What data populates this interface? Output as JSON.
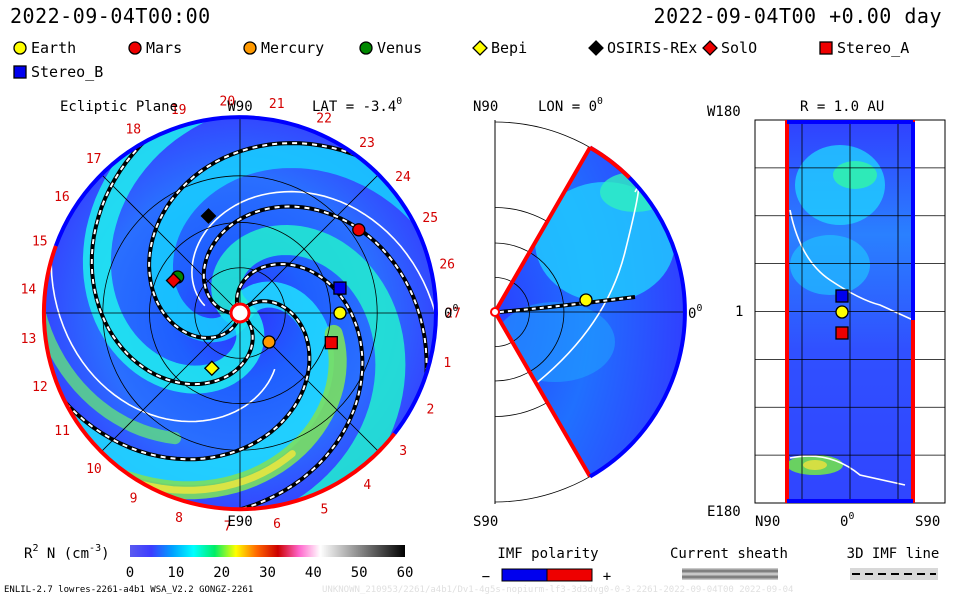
{
  "header": {
    "left_timestamp": "2022-09-04T00:00",
    "right_timestamp": "2022-09-04T00 +0.00 day"
  },
  "legend": {
    "items": [
      {
        "label": "Earth",
        "marker": "circle",
        "color": "#ffff00"
      },
      {
        "label": "Mars",
        "marker": "circle",
        "color": "#ee0000"
      },
      {
        "label": "Mercury",
        "marker": "circle",
        "color": "#ff9900"
      },
      {
        "label": "Venus",
        "marker": "circle",
        "color": "#008800"
      },
      {
        "label": "Bepi",
        "marker": "diamond",
        "color": "#ffff00"
      },
      {
        "label": "OSIRIS-REx",
        "marker": "diamond",
        "color": "#000000"
      },
      {
        "label": "SolO",
        "marker": "diamond",
        "color": "#ee0000"
      },
      {
        "label": "Stereo_A",
        "marker": "square",
        "color": "#ee0000"
      },
      {
        "label": "Stereo_B",
        "marker": "square",
        "color": "#0000ee"
      }
    ]
  },
  "chart_data": [
    {
      "type": "heatmap",
      "title": "Ecliptic Plane",
      "top_label": "W90",
      "bottom_label": "E90",
      "right_label": "0",
      "right_label_sup": "0",
      "lat_label": "LAT = -3.4",
      "lat_sup": "0",
      "sector_numbers": [
        "1",
        "2",
        "3",
        "4",
        "5",
        "6",
        "7",
        "8",
        "9",
        "10",
        "11",
        "12",
        "13",
        "14",
        "15",
        "16",
        "17",
        "18",
        "19",
        "20",
        "21",
        "22",
        "23",
        "24",
        "25",
        "26",
        "27"
      ],
      "bodies": [
        {
          "name": "Earth",
          "r_au": 1.0,
          "lon_deg": 0
        },
        {
          "name": "Mars",
          "r_au": 1.45,
          "lon_deg": 35
        },
        {
          "name": "Mercury",
          "r_au": 0.41,
          "lon_deg": -45
        },
        {
          "name": "Venus",
          "r_au": 0.72,
          "lon_deg": 150
        },
        {
          "name": "Bepi",
          "r_au": 0.62,
          "lon_deg": -117
        },
        {
          "name": "OSIRIS-REx",
          "r_au": 1.02,
          "lon_deg": 108
        },
        {
          "name": "SolO",
          "r_au": 0.74,
          "lon_deg": 154
        },
        {
          "name": "Stereo_A",
          "r_au": 0.96,
          "lon_deg": -18
        },
        {
          "name": "Stereo_B",
          "r_au": 1.03,
          "lon_deg": 14
        }
      ]
    },
    {
      "type": "heatmap",
      "top_left_label": "N90",
      "lon_label": "LON = 0",
      "lon_sup": "0",
      "right_label": "0",
      "right_label_sup": "0",
      "bottom_left_label": "S90",
      "bodies": [
        {
          "name": "Earth",
          "r_au": 1.0,
          "lat_deg": 0
        }
      ]
    },
    {
      "type": "heatmap",
      "r_label": "R = 1.0 AU",
      "top_left_label": "W180",
      "mid_left_label": "1",
      "bottom_left_label": "E180",
      "x_labels": [
        "N90",
        "0",
        "S90"
      ],
      "x_label_sup": "0",
      "bodies": [
        {
          "name": "Stereo_B",
          "lat_deg": 2,
          "lon_deg": 14
        },
        {
          "name": "Earth",
          "lat_deg": 0,
          "lon_deg": 0
        },
        {
          "name": "Stereo_A",
          "lat_deg": 0,
          "lon_deg": -18
        }
      ]
    }
  ],
  "colorbar": {
    "label": "R",
    "label_sup": "2",
    "label_rest": " N (cm",
    "label_sup2": "-3",
    "label_end": ")",
    "ticks": [
      "0",
      "10",
      "20",
      "30",
      "40",
      "50",
      "60"
    ],
    "range": [
      0,
      60
    ],
    "stops": [
      "#5a5af0",
      "#3c3cff",
      "#00a0ff",
      "#00ffff",
      "#00ee66",
      "#ffff00",
      "#ff6600",
      "#cc0000",
      "#ff66cc",
      "#ffffff",
      "#c0c0c0",
      "#808080",
      "#404040",
      "#000000"
    ]
  },
  "imf_legend": {
    "title": "IMF polarity",
    "minus": "−",
    "plus": "+",
    "minus_color": "#0000ee",
    "plus_color": "#ee0000"
  },
  "sheath_legend": {
    "title": "Current sheath"
  },
  "imf_line_legend": {
    "title": "3D IMF line"
  },
  "footer": {
    "left": "ENLIL-2.7 lowres-2261-a4b1 WSA_V2.2 GONGZ-2261",
    "right": "UNKNOWN_210953/2261/a4b1/Dv1-4g5s-nopiurm-lf3-3d3dvg0-0-3-2261-2022-09-04T00 2022-09-04"
  }
}
